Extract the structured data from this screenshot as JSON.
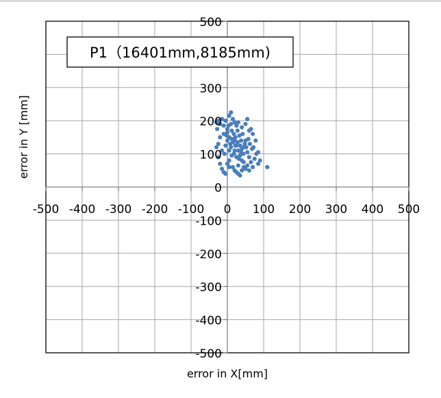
{
  "chart_data": {
    "type": "scatter",
    "title": "P1（16401mm,8185mm)",
    "xlabel": "error in X[mm]",
    "ylabel": "error in Y [mm]",
    "xlim": [
      -500,
      500
    ],
    "ylim": [
      -500,
      500
    ],
    "x_ticks": [
      "-500",
      "-400",
      "-300",
      "-200",
      "-100",
      "0",
      "100",
      "200",
      "300",
      "400",
      "500"
    ],
    "y_ticks": [
      "500",
      "300",
      "200",
      "100",
      "0",
      "-100",
      "-200",
      "-300",
      "-400",
      "-500"
    ],
    "grid": true,
    "marker_color": "#4a7ebb",
    "series": [
      {
        "points": [
          [
            -30,
            195
          ],
          [
            -25,
            200
          ],
          [
            -20,
            190
          ],
          [
            -28,
            175
          ],
          [
            -15,
            205
          ],
          [
            -10,
            185
          ],
          [
            -5,
            200
          ],
          [
            0,
            175
          ],
          [
            5,
            215
          ],
          [
            10,
            225
          ],
          [
            15,
            205
          ],
          [
            20,
            195
          ],
          [
            25,
            185
          ],
          [
            10,
            190
          ],
          [
            0,
            165
          ],
          [
            5,
            150
          ],
          [
            -10,
            160
          ],
          [
            -20,
            150
          ],
          [
            -25,
            130
          ],
          [
            -30,
            120
          ],
          [
            -15,
            110
          ],
          [
            -5,
            125
          ],
          [
            5,
            110
          ],
          [
            12,
            95
          ],
          [
            20,
            140
          ],
          [
            25,
            125
          ],
          [
            30,
            110
          ],
          [
            35,
            95
          ],
          [
            40,
            80
          ],
          [
            45,
            120
          ],
          [
            50,
            140
          ],
          [
            55,
            105
          ],
          [
            60,
            90
          ],
          [
            65,
            75
          ],
          [
            70,
            60
          ],
          [
            75,
            85
          ],
          [
            80,
            100
          ],
          [
            85,
            70
          ],
          [
            90,
            80
          ],
          [
            110,
            60
          ],
          [
            15,
            60
          ],
          [
            20,
            50
          ],
          [
            25,
            45
          ],
          [
            30,
            40
          ],
          [
            35,
            35
          ],
          [
            40,
            50
          ],
          [
            45,
            60
          ],
          [
            50,
            55
          ],
          [
            -15,
            55
          ],
          [
            -10,
            45
          ],
          [
            -5,
            40
          ],
          [
            0,
            70
          ],
          [
            5,
            80
          ],
          [
            8,
            130
          ],
          [
            12,
            170
          ],
          [
            18,
            160
          ],
          [
            22,
            150
          ],
          [
            28,
            170
          ],
          [
            33,
            155
          ],
          [
            38,
            140
          ],
          [
            42,
            160
          ],
          [
            48,
            130
          ],
          [
            52,
            120
          ],
          [
            58,
            145
          ],
          [
            62,
            130
          ],
          [
            68,
            115
          ],
          [
            72,
            120
          ],
          [
            78,
            140
          ],
          [
            85,
            105
          ],
          [
            60,
            170
          ],
          [
            50,
            190
          ],
          [
            40,
            180
          ],
          [
            30,
            195
          ],
          [
            55,
            205
          ],
          [
            65,
            175
          ],
          [
            70,
            160
          ],
          [
            20,
            110
          ],
          [
            18,
            100
          ],
          [
            25,
            90
          ],
          [
            32,
            85
          ],
          [
            38,
            105
          ],
          [
            44,
            100
          ],
          [
            10,
            120
          ],
          [
            0,
            140
          ],
          [
            -8,
            100
          ],
          [
            -20,
            70
          ],
          [
            -25,
            90
          ],
          [
            5,
            60
          ],
          [
            30,
            65
          ],
          [
            45,
            75
          ],
          [
            55,
            65
          ],
          [
            60,
            50
          ],
          [
            15,
            135
          ],
          [
            22,
            125
          ],
          [
            28,
            135
          ],
          [
            35,
            125
          ],
          [
            40,
            115
          ],
          [
            -2,
            155
          ],
          [
            3,
            185
          ],
          [
            12,
            145
          ]
        ]
      }
    ]
  }
}
